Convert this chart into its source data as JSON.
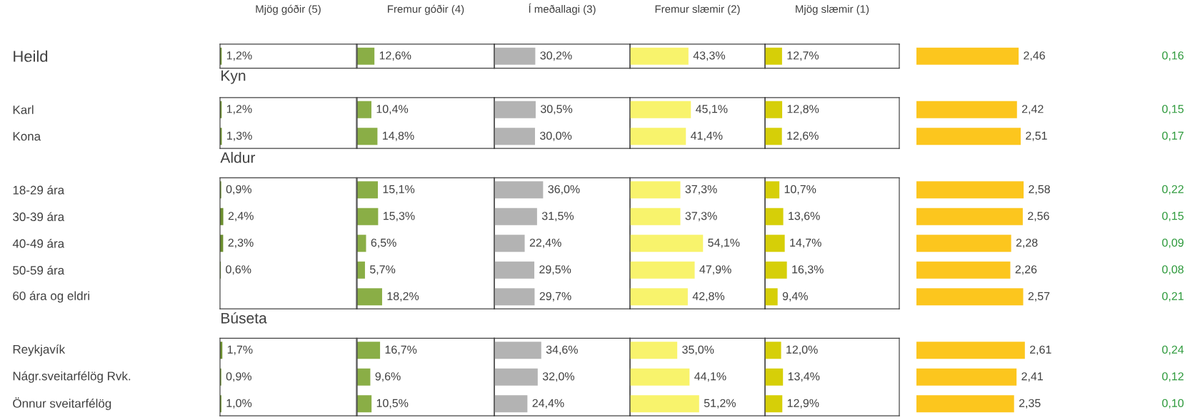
{
  "chart_data": [
    {
      "type": "bar",
      "orientation": "horizontal",
      "title": "Mjög góðir (5)",
      "categories": [
        "Heild",
        "Kyn",
        "Karl",
        "Kona",
        "Aldur",
        "18-29 ára",
        "30-39 ára",
        "40-49 ára",
        "50-59 ára",
        "60 ára og eldri",
        "Búseta",
        "Reykjavík",
        "Nágr.sveitarfélög Rvk.",
        "Önnur sveitarfélög"
      ],
      "color": "#6b8e2e",
      "xlim": [
        0,
        100
      ],
      "values": [
        1.2,
        null,
        1.2,
        1.3,
        null,
        0.9,
        2.4,
        2.3,
        0.6,
        null,
        null,
        1.7,
        0.9,
        1.0
      ],
      "value_labels": [
        "1,2%",
        null,
        "1,2%",
        "1,3%",
        null,
        "0,9%",
        "2,4%",
        "2,3%",
        "0,6%",
        null,
        null,
        "1,7%",
        "0,9%",
        "1,0%"
      ]
    },
    {
      "type": "bar",
      "orientation": "horizontal",
      "title": "Fremur góðir (4)",
      "color": "#8aae46",
      "xlim": [
        0,
        100
      ],
      "values": [
        12.6,
        null,
        10.4,
        14.8,
        null,
        15.1,
        15.3,
        6.5,
        5.7,
        18.2,
        null,
        16.7,
        9.6,
        10.5
      ],
      "value_labels": [
        "12,6%",
        null,
        "10,4%",
        "14,8%",
        null,
        "15,1%",
        "15,3%",
        "6,5%",
        "5,7%",
        "18,2%",
        null,
        "16,7%",
        "9,6%",
        "10,5%"
      ]
    },
    {
      "type": "bar",
      "orientation": "horizontal",
      "title": "Í meðallagi (3)",
      "color": "#b3b3b3",
      "xlim": [
        0,
        100
      ],
      "values": [
        30.2,
        null,
        30.5,
        30.0,
        null,
        36.0,
        31.5,
        22.4,
        29.5,
        29.7,
        null,
        34.6,
        32.0,
        24.4
      ],
      "value_labels": [
        "30,2%",
        null,
        "30,5%",
        "30,0%",
        null,
        "36,0%",
        "31,5%",
        "22,4%",
        "29,5%",
        "29,7%",
        null,
        "34,6%",
        "32,0%",
        "24,4%"
      ]
    },
    {
      "type": "bar",
      "orientation": "horizontal",
      "title": "Fremur slæmir (2)",
      "color": "#f8f36c",
      "xlim": [
        0,
        100
      ],
      "values": [
        43.3,
        null,
        45.1,
        41.4,
        null,
        37.3,
        37.3,
        54.1,
        47.9,
        42.8,
        null,
        35.0,
        44.1,
        51.2
      ],
      "value_labels": [
        "43,3%",
        null,
        "45,1%",
        "41,4%",
        null,
        "37,3%",
        "37,3%",
        "54,1%",
        "47,9%",
        "42,8%",
        null,
        "35,0%",
        "44,1%",
        "51,2%"
      ]
    },
    {
      "type": "bar",
      "orientation": "horizontal",
      "title": "Mjög slæmir (1)",
      "color": "#d6cf08",
      "xlim": [
        0,
        100
      ],
      "values": [
        12.7,
        null,
        12.8,
        12.6,
        null,
        10.7,
        13.6,
        14.7,
        16.3,
        9.4,
        null,
        12.0,
        13.4,
        12.9
      ],
      "value_labels": [
        "12,7%",
        null,
        "12,8%",
        "12,6%",
        null,
        "10,7%",
        "13,6%",
        "14,7%",
        "16,3%",
        "9,4%",
        null,
        "12,0%",
        "13,4%",
        "12,9%"
      ]
    },
    {
      "type": "bar",
      "orientation": "horizontal",
      "color": "#fcc61e",
      "values": [
        2.46,
        null,
        2.42,
        2.51,
        null,
        2.58,
        2.56,
        2.28,
        2.26,
        2.57,
        null,
        2.61,
        2.41,
        2.35
      ],
      "value_labels": [
        "2,46",
        null,
        "2,42",
        "2,51",
        null,
        "2,58",
        "2,56",
        "2,28",
        "2,26",
        "2,57",
        null,
        "2,61",
        "2,41",
        "2,35"
      ]
    },
    {
      "type": "other",
      "color": "#2e9a3c",
      "value_labels": [
        "0,16",
        null,
        "0,15",
        "0,17",
        null,
        "0,22",
        "0,15",
        "0,09",
        "0,08",
        "0,21",
        null,
        "0,24",
        "0,12",
        "0,10"
      ]
    }
  ]
}
